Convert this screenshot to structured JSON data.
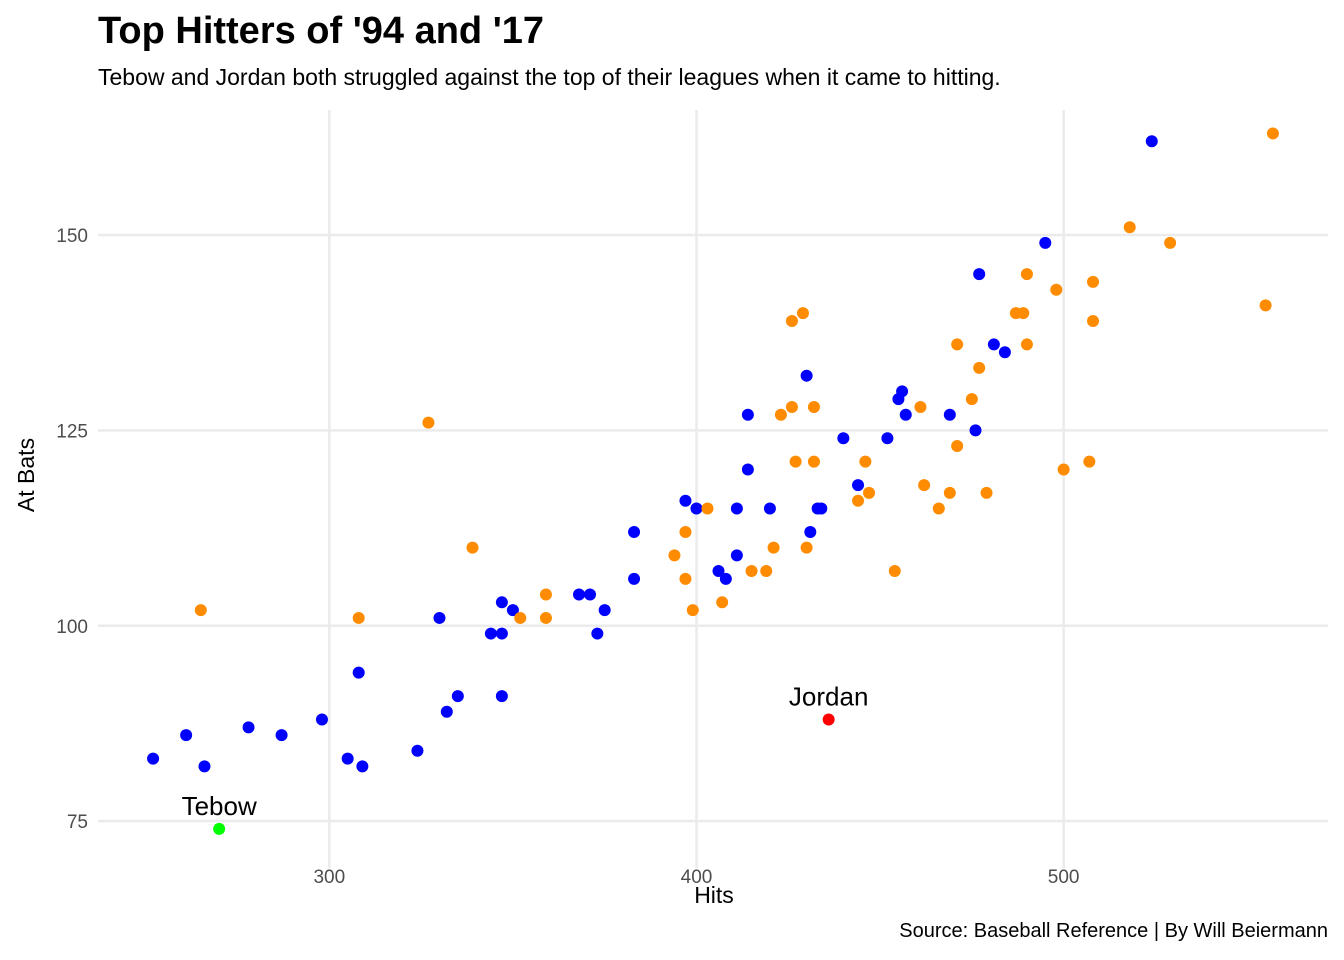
{
  "chart_data": {
    "type": "scatter",
    "title": "Top Hitters of '94 and '17",
    "subtitle": "Tebow and Jordan both struggled against the top of their leagues when it came to hitting.",
    "caption": "Source: Baseball Reference | By Will Beiermann",
    "xlabel": "Hits",
    "ylabel": "At Bats",
    "xlim": [
      237,
      572
    ],
    "ylim": [
      69,
      166
    ],
    "x_ticks": [
      300,
      400,
      500
    ],
    "y_ticks": [
      75,
      100,
      125,
      150
    ],
    "grid": true,
    "colors": {
      "series_a": "#0000ff",
      "series_b": "#ff8c00",
      "tebow": "#00ff00",
      "jordan": "#ff0000"
    },
    "series": [
      {
        "color": "#0000ff",
        "points": [
          [
            252,
            83
          ],
          [
            261,
            86
          ],
          [
            266,
            82
          ],
          [
            278,
            87
          ],
          [
            287,
            86
          ],
          [
            298,
            88
          ],
          [
            305,
            83
          ],
          [
            308,
            94
          ],
          [
            309,
            82
          ],
          [
            324,
            84
          ],
          [
            330,
            101
          ],
          [
            332,
            89
          ],
          [
            335,
            91
          ],
          [
            344,
            99
          ],
          [
            347,
            99
          ],
          [
            347,
            103
          ],
          [
            347,
            91
          ],
          [
            350,
            102
          ],
          [
            368,
            104
          ],
          [
            371,
            104
          ],
          [
            373,
            99
          ],
          [
            375,
            102
          ],
          [
            383,
            112
          ],
          [
            383,
            106
          ],
          [
            397,
            116
          ],
          [
            400,
            115
          ],
          [
            406,
            107
          ],
          [
            408,
            106
          ],
          [
            411,
            115
          ],
          [
            411,
            109
          ],
          [
            414,
            127
          ],
          [
            414,
            120
          ],
          [
            420,
            115
          ],
          [
            430,
            132
          ],
          [
            431,
            112
          ],
          [
            433,
            115
          ],
          [
            434,
            115
          ],
          [
            440,
            124
          ],
          [
            444,
            118
          ],
          [
            452,
            124
          ],
          [
            455,
            129
          ],
          [
            456,
            130
          ],
          [
            457,
            127
          ],
          [
            469,
            127
          ],
          [
            476,
            125
          ],
          [
            477,
            145
          ],
          [
            481,
            136
          ],
          [
            484,
            135
          ],
          [
            495,
            149
          ],
          [
            524,
            162
          ]
        ]
      },
      {
        "color": "#ff8c00",
        "points": [
          [
            265,
            102
          ],
          [
            327,
            126
          ],
          [
            308,
            101
          ],
          [
            339,
            110
          ],
          [
            352,
            101
          ],
          [
            359,
            104
          ],
          [
            359,
            101
          ],
          [
            394,
            109
          ],
          [
            397,
            112
          ],
          [
            397,
            106
          ],
          [
            399,
            102
          ],
          [
            403,
            115
          ],
          [
            407,
            103
          ],
          [
            415,
            107
          ],
          [
            419,
            107
          ],
          [
            421,
            110
          ],
          [
            423,
            127
          ],
          [
            426,
            139
          ],
          [
            426,
            128
          ],
          [
            427,
            121
          ],
          [
            429,
            140
          ],
          [
            430,
            110
          ],
          [
            432,
            128
          ],
          [
            432,
            121
          ],
          [
            444,
            116
          ],
          [
            446,
            121
          ],
          [
            447,
            117
          ],
          [
            454,
            107
          ],
          [
            461,
            128
          ],
          [
            462,
            118
          ],
          [
            466,
            115
          ],
          [
            469,
            117
          ],
          [
            471,
            136
          ],
          [
            471,
            123
          ],
          [
            475,
            129
          ],
          [
            477,
            133
          ],
          [
            479,
            117
          ],
          [
            487,
            140
          ],
          [
            489,
            140
          ],
          [
            490,
            145
          ],
          [
            490,
            136
          ],
          [
            498,
            143
          ],
          [
            500,
            120
          ],
          [
            507,
            121
          ],
          [
            508,
            144
          ],
          [
            508,
            139
          ],
          [
            518,
            151
          ],
          [
            529,
            149
          ],
          [
            555,
            141
          ],
          [
            557,
            163
          ]
        ]
      }
    ],
    "highlights": [
      {
        "label": "Tebow",
        "x": 270,
        "y": 74,
        "color": "#00ff00"
      },
      {
        "label": "Jordan",
        "x": 436,
        "y": 88,
        "color": "#ff0000"
      }
    ]
  }
}
